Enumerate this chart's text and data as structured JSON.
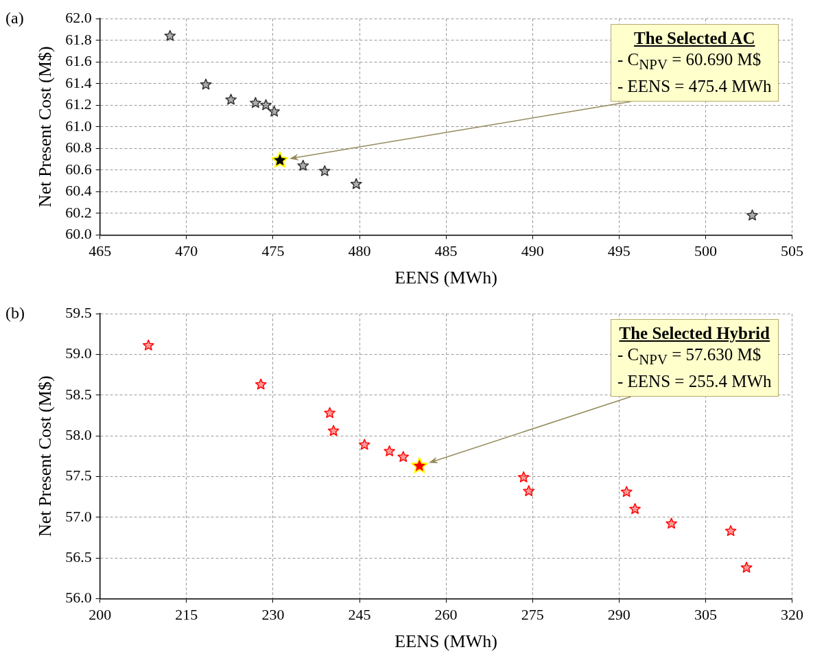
{
  "chart_data": [
    {
      "type": "scatter",
      "title": "(a)",
      "xlabel": "EENS (MWh)",
      "ylabel": "Net Present Cost (M$)",
      "series": [
        {
          "color": "#333333",
          "x": [
            469.05,
            471.12,
            472.57,
            473.99,
            474.59,
            475.07,
            476.74,
            477.99,
            479.81,
            502.7
          ],
          "values": [
            61.84,
            61.39,
            61.25,
            61.22,
            61.2,
            61.14,
            60.64,
            60.59,
            60.47,
            60.18
          ]
        },
        {
          "color": "#000000",
          "x": [
            475.4
          ],
          "values": [
            60.69
          ]
        }
      ],
      "xlim": [
        465,
        505
      ],
      "xticks": [
        465,
        470,
        475,
        480,
        485,
        490,
        495,
        500,
        505
      ],
      "ylim": [
        60,
        62
      ],
      "yticks": [
        {
          "value": 60,
          "label": "60.0"
        },
        60.2,
        60.4,
        60.6,
        60.8,
        {
          "value": 61,
          "label": "61.0"
        },
        61.2,
        61.4,
        61.6,
        61.8,
        {
          "value": 62,
          "label": "62.0"
        }
      ],
      "grid": true,
      "marker": "star",
      "annotations": [
        "The Selected AC\n- C$_{NPV}$ = 60.690 M$\n- EENS = 475.4 MWh"
      ]
    },
    {
      "type": "scatter",
      "title": "(b)",
      "xlabel": "EENS (MWh)",
      "ylabel": "Net Present Cost (M$)",
      "series": [
        {
          "color": "#ff0000",
          "x": [
            208.4,
            227.9,
            239.84,
            240.49,
            245.86,
            250.19,
            252.58,
            273.45,
            274.35,
            291.3,
            292.77,
            299.08,
            309.37,
            312.1
          ],
          "values": [
            59.11,
            58.63,
            58.28,
            58.06,
            57.89,
            57.81,
            57.74,
            57.49,
            57.32,
            57.31,
            57.1,
            56.92,
            56.83,
            56.38
          ]
        },
        {
          "color": "#ff0000",
          "x": [
            255.4
          ],
          "values": [
            57.63
          ]
        }
      ],
      "xlim": [
        200,
        320
      ],
      "xticks": [
        200,
        215,
        230,
        245,
        260,
        275,
        290,
        305,
        320
      ],
      "ylim": [
        56,
        59.5
      ],
      "yticks": [
        {
          "value": 56,
          "label": "56.0"
        },
        56.5,
        {
          "value": 57,
          "label": "57.0"
        },
        57.5,
        {
          "value": 58,
          "label": "58.0"
        },
        58.5,
        {
          "value": 59,
          "label": "59.0"
        },
        59.5
      ],
      "grid": true,
      "marker": "star",
      "annotations": [
        "The Selected Hybrid\n- C$_{NPV}$ = 57.630 M$\n- EENS = 255.4 MWh"
      ]
    }
  ]
}
